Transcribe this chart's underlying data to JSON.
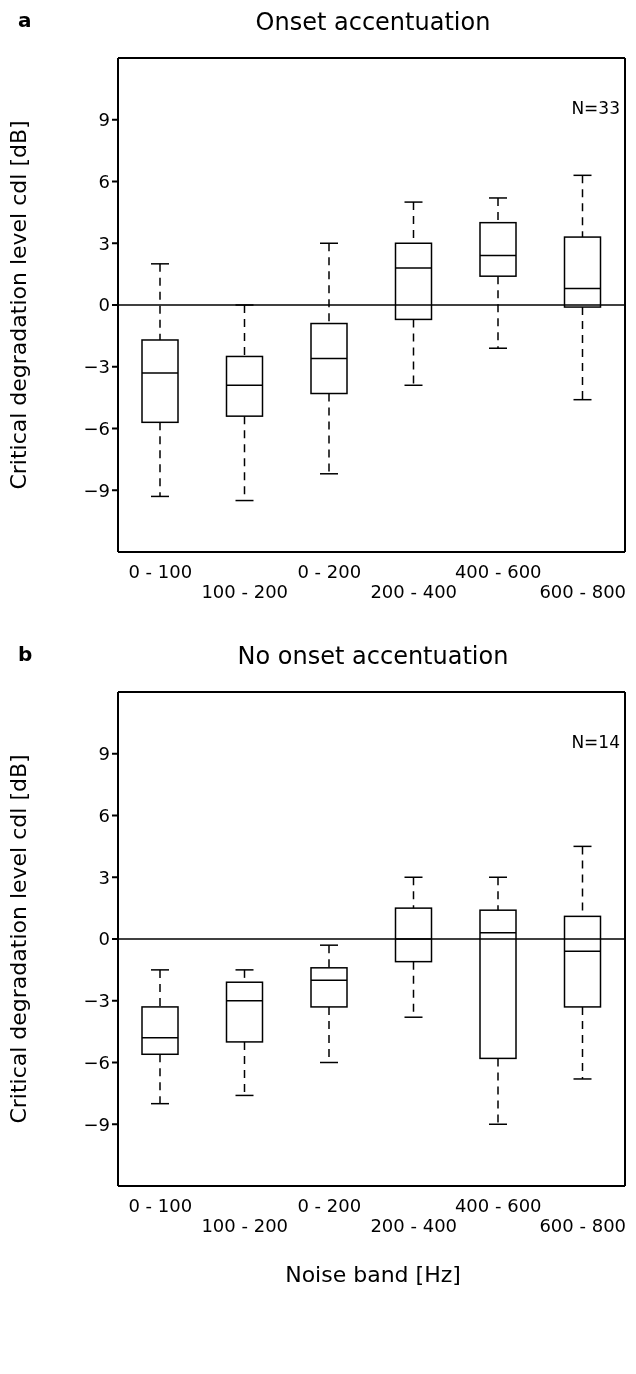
{
  "chart_data": [
    {
      "type": "box",
      "title": "Onset accentuation",
      "ylabel": "Critical degradation level cdl [dB]",
      "annotations": [
        "a",
        "N=33"
      ],
      "categories": [
        "0 - 100",
        "100 - 200",
        "0 - 200",
        "200 - 400",
        "400 - 600",
        "600 - 800"
      ],
      "color": "#000000",
      "ylim": [
        -12,
        12
      ],
      "yticks": [
        {
          "value": -9,
          "label": "−9"
        },
        {
          "value": -6,
          "label": "−6"
        },
        {
          "value": -3,
          "label": "−3"
        },
        0,
        3,
        6,
        9
      ],
      "ref_lines": [
        {
          "axis": "y",
          "value": 0,
          "color": "#000000"
        }
      ],
      "boxes": [
        {
          "low": -9.3,
          "q1": -5.7,
          "median": -3.3,
          "q3": -1.7,
          "high": 2
        },
        {
          "low": -9.5,
          "q1": -5.4,
          "median": -3.9,
          "q3": -2.5,
          "high": 0
        },
        {
          "low": -8.2,
          "q1": -4.3,
          "median": -2.6,
          "q3": -0.9,
          "high": 3
        },
        {
          "low": -3.9,
          "q1": -0.7,
          "median": 1.8,
          "q3": 3,
          "high": 5
        },
        {
          "low": -2.1,
          "q1": 1.4,
          "median": 2.4,
          "q3": 4,
          "high": 5.2
        },
        {
          "low": -4.6,
          "q1": -0.1,
          "median": 0.8,
          "q3": 3.3,
          "high": 6.3
        }
      ]
    },
    {
      "type": "box",
      "title": "No onset accentuation",
      "xlabel": "Noise band [Hz]",
      "ylabel": "Critical degradation level cdl [dB]",
      "annotations": [
        "b",
        "N=14"
      ],
      "categories": [
        "0 - 100",
        "100 - 200",
        "0 - 200",
        "200 - 400",
        "400 - 600",
        "600 - 800"
      ],
      "color": "#000000",
      "ylim": [
        -12,
        12
      ],
      "yticks": [
        {
          "value": -9,
          "label": "−9"
        },
        {
          "value": -6,
          "label": "−6"
        },
        {
          "value": -3,
          "label": "−3"
        },
        0,
        3,
        6,
        9
      ],
      "ref_lines": [
        {
          "axis": "y",
          "value": 0,
          "color": "#000000"
        }
      ],
      "boxes": [
        {
          "low": -8,
          "q1": -5.6,
          "median": -4.8,
          "q3": -3.3,
          "high": -1.5
        },
        {
          "low": -7.6,
          "q1": -5,
          "median": -3,
          "q3": -2.1,
          "high": -1.5
        },
        {
          "low": -6,
          "q1": -3.3,
          "median": -2,
          "q3": -1.4,
          "high": -0.3
        },
        {
          "low": -3.8,
          "q1": -1.1,
          "median": 0,
          "q3": 1.5,
          "high": 3
        },
        {
          "low": -9,
          "q1": -5.8,
          "median": 0.3,
          "q3": 1.4,
          "high": 3
        },
        {
          "low": -6.8,
          "q1": -3.3,
          "median": -0.6,
          "q3": 1.1,
          "high": 4.5
        }
      ]
    }
  ]
}
